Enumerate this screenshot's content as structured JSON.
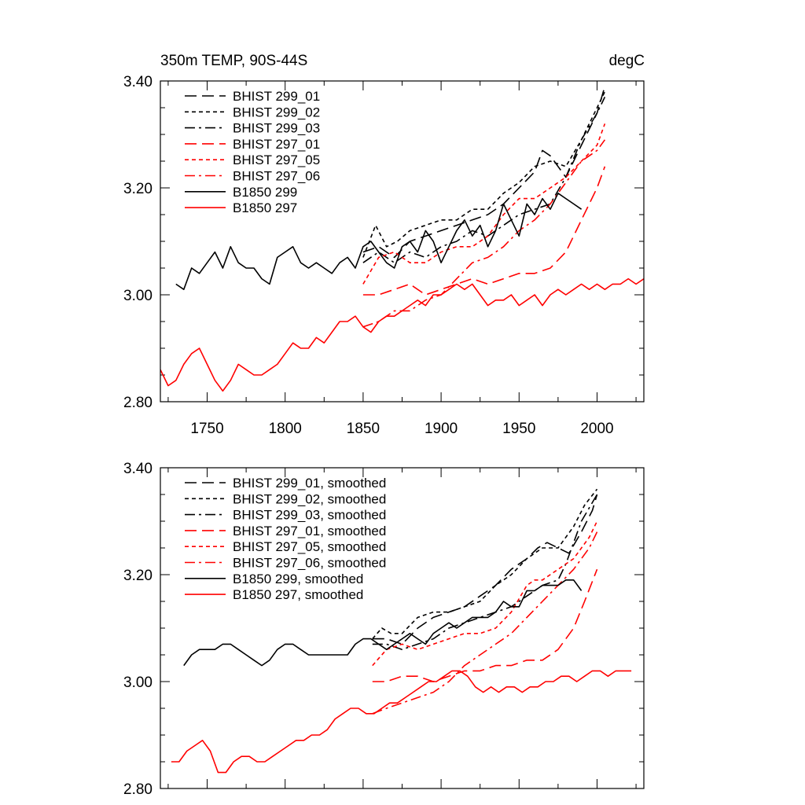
{
  "figure": {
    "title_left": "350m TEMP, 90S-44S",
    "title_right": "degC"
  },
  "chart_data": [
    {
      "type": "line",
      "title": "350m TEMP, 90S-44S",
      "units": "degC",
      "xlim": [
        1720,
        2030
      ],
      "ylim": [
        2.8,
        3.4
      ],
      "x_ticks": [
        1750,
        1800,
        1850,
        1900,
        1950,
        2000
      ],
      "x_tick_labels": [
        "1750",
        "1800",
        "1850",
        "1900",
        "1950",
        "2000"
      ],
      "y_ticks": [
        2.8,
        3.0,
        3.2,
        3.4
      ],
      "y_tick_labels": [
        "2.80",
        "3.00",
        "3.20",
        "3.40"
      ],
      "legend_position": "top-left",
      "series": [
        {
          "name": "BHIST 299_01",
          "color": "#000000",
          "dash": "long-dash",
          "x": [
            1850,
            1860,
            1870,
            1880,
            1890,
            1900,
            1910,
            1920,
            1930,
            1940,
            1950,
            1960,
            1965,
            1970,
            1975,
            1980,
            1985,
            1990,
            1995,
            2000,
            2005
          ],
          "y": [
            3.08,
            3.09,
            3.07,
            3.1,
            3.11,
            3.12,
            3.13,
            3.14,
            3.15,
            3.17,
            3.2,
            3.23,
            3.27,
            3.26,
            3.24,
            3.22,
            3.25,
            3.28,
            3.31,
            3.34,
            3.39
          ]
        },
        {
          "name": "BHIST 299_02",
          "color": "#000000",
          "dash": "short-dash",
          "x": [
            1850,
            1858,
            1865,
            1872,
            1880,
            1890,
            1900,
            1910,
            1920,
            1930,
            1940,
            1950,
            1960,
            1970,
            1980,
            1990,
            2000,
            2005
          ],
          "y": [
            3.07,
            3.13,
            3.09,
            3.1,
            3.12,
            3.13,
            3.14,
            3.14,
            3.16,
            3.16,
            3.19,
            3.21,
            3.24,
            3.25,
            3.24,
            3.29,
            3.35,
            3.38
          ]
        },
        {
          "name": "BHIST 299_03",
          "color": "#000000",
          "dash": "dash-dot",
          "x": [
            1850,
            1860,
            1870,
            1880,
            1890,
            1900,
            1910,
            1920,
            1930,
            1940,
            1950,
            1960,
            1970,
            1980,
            1990,
            2000,
            2005
          ],
          "y": [
            3.06,
            3.08,
            3.06,
            3.08,
            3.07,
            3.09,
            3.1,
            3.12,
            3.11,
            3.13,
            3.15,
            3.16,
            3.17,
            3.22,
            3.29,
            3.34,
            3.37
          ]
        },
        {
          "name": "BHIST 297_01",
          "color": "#ff0000",
          "dash": "long-dash",
          "x": [
            1850,
            1860,
            1870,
            1880,
            1890,
            1900,
            1910,
            1920,
            1930,
            1940,
            1950,
            1960,
            1970,
            1980,
            1990,
            2000,
            2005
          ],
          "y": [
            3.0,
            3.0,
            3.01,
            3.02,
            3.0,
            3.01,
            3.02,
            3.03,
            3.02,
            3.03,
            3.04,
            3.04,
            3.05,
            3.08,
            3.14,
            3.2,
            3.24
          ]
        },
        {
          "name": "BHIST 297_05",
          "color": "#ff0000",
          "dash": "short-dash",
          "x": [
            1850,
            1860,
            1870,
            1880,
            1890,
            1900,
            1910,
            1920,
            1930,
            1940,
            1950,
            1960,
            1970,
            1980,
            1990,
            2000,
            2005
          ],
          "y": [
            3.02,
            3.07,
            3.08,
            3.06,
            3.06,
            3.08,
            3.09,
            3.09,
            3.11,
            3.15,
            3.18,
            3.18,
            3.2,
            3.22,
            3.25,
            3.28,
            3.32
          ]
        },
        {
          "name": "BHIST 297_06",
          "color": "#ff0000",
          "dash": "dash-dot",
          "x": [
            1850,
            1860,
            1870,
            1880,
            1890,
            1900,
            1910,
            1920,
            1930,
            1940,
            1950,
            1960,
            1970,
            1980,
            1990,
            2000,
            2005
          ],
          "y": [
            2.94,
            2.95,
            2.97,
            2.97,
            2.99,
            3.0,
            3.03,
            3.06,
            3.07,
            3.09,
            3.12,
            3.14,
            3.17,
            3.21,
            3.25,
            3.27,
            3.29
          ]
        },
        {
          "name": "B1850 299",
          "color": "#000000",
          "dash": "solid",
          "x": [
            1730,
            1735,
            1740,
            1745,
            1750,
            1755,
            1760,
            1765,
            1770,
            1775,
            1780,
            1785,
            1790,
            1795,
            1800,
            1805,
            1810,
            1815,
            1820,
            1825,
            1830,
            1835,
            1840,
            1845,
            1850,
            1855,
            1860,
            1865,
            1870,
            1875,
            1880,
            1885,
            1890,
            1895,
            1900,
            1905,
            1910,
            1915,
            1920,
            1925,
            1930,
            1935,
            1940,
            1945,
            1950,
            1955,
            1960,
            1965,
            1970,
            1975,
            1980,
            1985,
            1990
          ],
          "y": [
            3.02,
            3.01,
            3.05,
            3.04,
            3.06,
            3.08,
            3.05,
            3.09,
            3.06,
            3.05,
            3.05,
            3.03,
            3.02,
            3.07,
            3.08,
            3.09,
            3.06,
            3.05,
            3.06,
            3.05,
            3.04,
            3.06,
            3.07,
            3.05,
            3.09,
            3.1,
            3.08,
            3.06,
            3.05,
            3.09,
            3.1,
            3.08,
            3.12,
            3.1,
            3.06,
            3.09,
            3.12,
            3.14,
            3.11,
            3.13,
            3.09,
            3.12,
            3.17,
            3.14,
            3.11,
            3.17,
            3.15,
            3.18,
            3.16,
            3.19,
            3.18,
            3.17,
            3.16
          ]
        },
        {
          "name": "B1850 297",
          "color": "#ff0000",
          "dash": "solid",
          "x": [
            1720,
            1725,
            1730,
            1735,
            1740,
            1745,
            1750,
            1755,
            1760,
            1765,
            1770,
            1775,
            1780,
            1785,
            1790,
            1795,
            1800,
            1805,
            1810,
            1815,
            1820,
            1825,
            1830,
            1835,
            1840,
            1845,
            1850,
            1855,
            1860,
            1865,
            1870,
            1875,
            1880,
            1885,
            1890,
            1895,
            1900,
            1905,
            1910,
            1915,
            1920,
            1925,
            1930,
            1935,
            1940,
            1945,
            1950,
            1955,
            1960,
            1965,
            1970,
            1975,
            1980,
            1985,
            1990,
            1995,
            2000,
            2005,
            2010,
            2015,
            2020,
            2025,
            2030
          ],
          "y": [
            2.86,
            2.83,
            2.84,
            2.87,
            2.89,
            2.9,
            2.87,
            2.84,
            2.82,
            2.84,
            2.87,
            2.86,
            2.85,
            2.85,
            2.86,
            2.87,
            2.89,
            2.91,
            2.9,
            2.9,
            2.92,
            2.91,
            2.93,
            2.95,
            2.95,
            2.96,
            2.94,
            2.93,
            2.95,
            2.96,
            2.96,
            2.97,
            2.98,
            2.99,
            2.98,
            3.0,
            3.0,
            3.01,
            3.02,
            3.01,
            3.02,
            3.0,
            2.98,
            2.99,
            2.99,
            3.0,
            2.98,
            2.99,
            3.0,
            2.98,
            3.0,
            3.01,
            3.0,
            3.01,
            3.02,
            3.01,
            3.02,
            3.01,
            3.02,
            3.02,
            3.03,
            3.02,
            3.03
          ]
        }
      ]
    },
    {
      "type": "line",
      "xlim": [
        1720,
        2030
      ],
      "ylim": [
        2.8,
        3.4
      ],
      "y_ticks": [
        2.8,
        3.0,
        3.2,
        3.4
      ],
      "y_tick_labels": [
        "2.80",
        "3.00",
        "3.20",
        "3.40"
      ],
      "legend_position": "top-left",
      "series": [
        {
          "name": "BHIST 299_01, smoothed",
          "color": "#000000",
          "dash": "long-dash",
          "x": [
            1856,
            1865,
            1875,
            1885,
            1895,
            1905,
            1915,
            1925,
            1935,
            1945,
            1955,
            1962,
            1968,
            1975,
            1982,
            1990,
            1997,
            2000
          ],
          "y": [
            3.08,
            3.08,
            3.07,
            3.1,
            3.12,
            3.13,
            3.14,
            3.16,
            3.18,
            3.21,
            3.23,
            3.25,
            3.26,
            3.25,
            3.24,
            3.28,
            3.32,
            3.35
          ]
        },
        {
          "name": "BHIST 299_02, smoothed",
          "color": "#000000",
          "dash": "short-dash",
          "x": [
            1856,
            1862,
            1868,
            1875,
            1885,
            1895,
            1905,
            1915,
            1925,
            1935,
            1945,
            1955,
            1965,
            1975,
            1985,
            1992,
            2000
          ],
          "y": [
            3.08,
            3.1,
            3.09,
            3.09,
            3.12,
            3.13,
            3.13,
            3.14,
            3.15,
            3.18,
            3.2,
            3.23,
            3.25,
            3.25,
            3.29,
            3.33,
            3.36
          ]
        },
        {
          "name": "BHIST 299_03, smoothed",
          "color": "#000000",
          "dash": "dash-dot",
          "x": [
            1856,
            1865,
            1875,
            1885,
            1895,
            1905,
            1915,
            1925,
            1935,
            1945,
            1955,
            1965,
            1975,
            1980,
            1985,
            1990,
            2000
          ],
          "y": [
            3.07,
            3.07,
            3.06,
            3.07,
            3.08,
            3.1,
            3.11,
            3.12,
            3.13,
            3.14,
            3.16,
            3.18,
            3.19,
            3.22,
            3.26,
            3.3,
            3.35
          ]
        },
        {
          "name": "BHIST 297_01, smoothed",
          "color": "#ff0000",
          "dash": "long-dash",
          "x": [
            1856,
            1865,
            1875,
            1885,
            1895,
            1905,
            1915,
            1925,
            1935,
            1945,
            1955,
            1965,
            1975,
            1985,
            1992,
            2000
          ],
          "y": [
            3.0,
            3.0,
            3.01,
            3.01,
            3.0,
            3.01,
            3.02,
            3.02,
            3.03,
            3.03,
            3.04,
            3.04,
            3.06,
            3.1,
            3.15,
            3.21
          ]
        },
        {
          "name": "BHIST 297_05, smoothed",
          "color": "#ff0000",
          "dash": "short-dash",
          "x": [
            1856,
            1865,
            1875,
            1885,
            1895,
            1905,
            1915,
            1925,
            1935,
            1945,
            1955,
            1960,
            1965,
            1975,
            1985,
            1995,
            2000
          ],
          "y": [
            3.03,
            3.06,
            3.07,
            3.06,
            3.07,
            3.08,
            3.09,
            3.09,
            3.1,
            3.13,
            3.18,
            3.19,
            3.19,
            3.21,
            3.23,
            3.27,
            3.3
          ]
        },
        {
          "name": "BHIST 297_06, smoothed",
          "color": "#ff0000",
          "dash": "dash-dot",
          "x": [
            1856,
            1865,
            1875,
            1885,
            1895,
            1905,
            1915,
            1925,
            1935,
            1945,
            1955,
            1965,
            1975,
            1985,
            1995,
            2000
          ],
          "y": [
            2.94,
            2.95,
            2.96,
            2.97,
            2.98,
            3.0,
            3.03,
            3.05,
            3.07,
            3.09,
            3.12,
            3.15,
            3.18,
            3.21,
            3.25,
            3.28
          ]
        },
        {
          "name": "B1850 299, smoothed",
          "color": "#000000",
          "dash": "solid",
          "x": [
            1735,
            1740,
            1745,
            1750,
            1755,
            1760,
            1765,
            1770,
            1775,
            1780,
            1785,
            1790,
            1795,
            1800,
            1805,
            1810,
            1815,
            1820,
            1825,
            1830,
            1835,
            1840,
            1845,
            1850,
            1855,
            1860,
            1865,
            1870,
            1875,
            1880,
            1885,
            1890,
            1895,
            1900,
            1905,
            1910,
            1915,
            1920,
            1925,
            1930,
            1935,
            1940,
            1945,
            1950,
            1955,
            1960,
            1965,
            1970,
            1975,
            1980,
            1985,
            1990
          ],
          "y": [
            3.03,
            3.05,
            3.06,
            3.06,
            3.06,
            3.07,
            3.07,
            3.06,
            3.05,
            3.04,
            3.03,
            3.04,
            3.06,
            3.07,
            3.07,
            3.06,
            3.05,
            3.05,
            3.05,
            3.05,
            3.05,
            3.05,
            3.07,
            3.08,
            3.08,
            3.07,
            3.06,
            3.07,
            3.08,
            3.09,
            3.08,
            3.07,
            3.09,
            3.1,
            3.11,
            3.1,
            3.11,
            3.12,
            3.12,
            3.12,
            3.13,
            3.15,
            3.14,
            3.14,
            3.17,
            3.17,
            3.18,
            3.18,
            3.18,
            3.19,
            3.19,
            3.17
          ]
        },
        {
          "name": "B1850 297, smoothed",
          "color": "#ff0000",
          "dash": "solid",
          "x": [
            1727,
            1732,
            1737,
            1742,
            1747,
            1752,
            1757,
            1762,
            1767,
            1772,
            1777,
            1782,
            1787,
            1792,
            1797,
            1802,
            1807,
            1812,
            1817,
            1822,
            1827,
            1832,
            1837,
            1842,
            1847,
            1852,
            1857,
            1862,
            1867,
            1872,
            1877,
            1882,
            1887,
            1892,
            1897,
            1902,
            1907,
            1912,
            1917,
            1922,
            1927,
            1932,
            1937,
            1942,
            1947,
            1952,
            1957,
            1962,
            1967,
            1972,
            1977,
            1982,
            1987,
            1992,
            1997,
            2002,
            2007,
            2012,
            2017,
            2022
          ],
          "y": [
            2.85,
            2.85,
            2.87,
            2.88,
            2.89,
            2.87,
            2.83,
            2.83,
            2.85,
            2.86,
            2.86,
            2.85,
            2.85,
            2.86,
            2.87,
            2.88,
            2.89,
            2.89,
            2.9,
            2.9,
            2.91,
            2.93,
            2.94,
            2.95,
            2.95,
            2.94,
            2.94,
            2.95,
            2.96,
            2.96,
            2.97,
            2.98,
            2.99,
            3.0,
            3.0,
            3.01,
            3.02,
            3.02,
            3.01,
            2.99,
            2.98,
            2.99,
            2.98,
            2.99,
            2.99,
            2.98,
            2.99,
            2.99,
            3.0,
            3.0,
            3.01,
            3.01,
            3.0,
            3.01,
            3.02,
            3.02,
            3.01,
            3.02,
            3.02,
            3.02
          ]
        }
      ]
    }
  ]
}
